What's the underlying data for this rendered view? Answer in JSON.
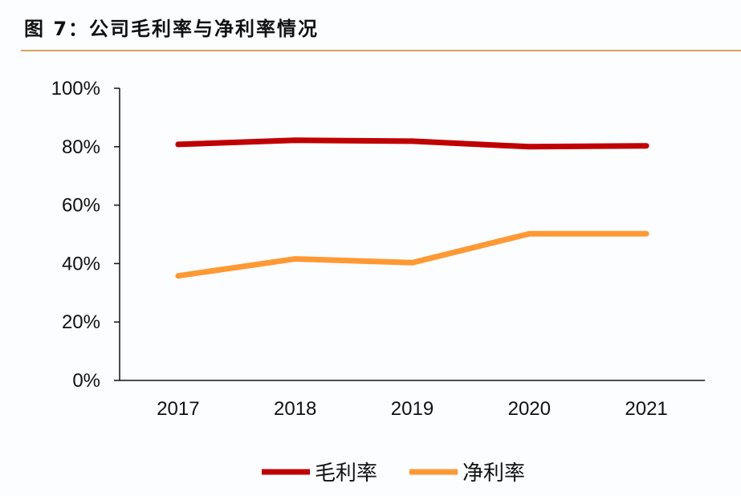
{
  "title": "图 7：公司毛利率与净利率情况",
  "chart_data": {
    "type": "line",
    "title": "图 7：公司毛利率与净利率情况",
    "categories": [
      "2017",
      "2018",
      "2019",
      "2020",
      "2021"
    ],
    "yticks": [
      "0%",
      "20%",
      "40%",
      "60%",
      "80%",
      "100%"
    ],
    "ylim": [
      0,
      100
    ],
    "grid": false,
    "legend_position": "bottom",
    "series": [
      {
        "name": "毛利率",
        "color": "#c00000",
        "values": [
          80.8,
          82.2,
          81.9,
          80.0,
          80.3
        ]
      },
      {
        "name": "净利率",
        "color": "#ff9933",
        "values": [
          35.8,
          41.6,
          40.3,
          50.2,
          50.2
        ]
      }
    ]
  }
}
